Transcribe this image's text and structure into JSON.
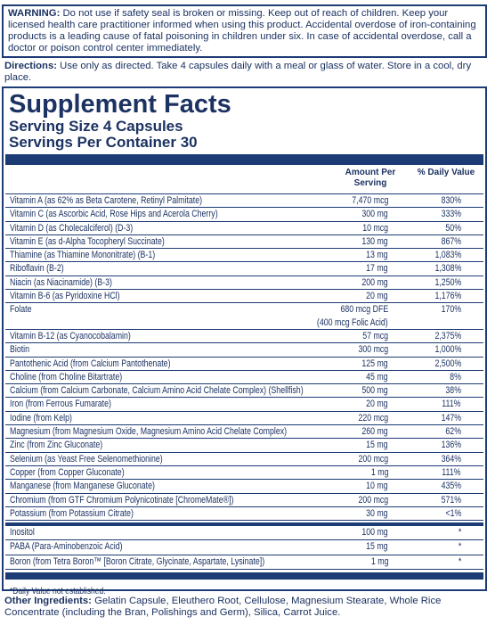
{
  "warning": {
    "label": "WARNING:",
    "text": "Do not use if safety seal is broken or missing. Keep out of reach of children. Keep your licensed health care practitioner informed when using this product. Accidental overdose of iron-containing products is a leading cause of fatal poisoning in children under six. In case of accidental overdose, call a doctor or poison control center immediately."
  },
  "directions": {
    "label": "Directions:",
    "text": "Use only as directed. Take 4 capsules daily with a meal or glass of water. Store in a cool, dry place."
  },
  "facts": {
    "title": "Supplement Facts",
    "serving_size": "Serving Size 4 Capsules",
    "servings_per_container": "Servings Per Container 30",
    "header": {
      "amount": "Amount Per Serving",
      "daily_value": "% Daily Value"
    },
    "rows": [
      {
        "name": "Vitamin A (as 62% as Beta Carotene, Retinyl Palmitate)",
        "amount": "7,470 mcg",
        "dv": "830%"
      },
      {
        "name": "Vitamin C (as Ascorbic Acid, Rose Hips and Acerola Cherry)",
        "amount": "300 mg",
        "dv": "333%"
      },
      {
        "name": "Vitamin D (as Cholecalciferol) (D-3)",
        "amount": "10 mcg",
        "dv": "50%"
      },
      {
        "name": "Vitamin E (as d-Alpha Tocopheryl Succinate)",
        "amount": "130 mg",
        "dv": "867%"
      },
      {
        "name": "Thiamine (as Thiamine Mononitrate) (B-1)",
        "amount": "13 mg",
        "dv": "1,083%"
      },
      {
        "name": "Riboflavin (B-2)",
        "amount": "17 mg",
        "dv": "1,308%"
      },
      {
        "name": "Niacin (as Niacinamide) (B-3)",
        "amount": "200 mg",
        "dv": "1,250%"
      },
      {
        "name": "Vitamin B-6 (as Pyridoxine HCl)",
        "amount": "20 mg",
        "dv": "1,176%"
      },
      {
        "name": "Folate",
        "amount": "680 mcg DFE",
        "amount_detail": "(400 mcg Folic Acid)",
        "dv": "170%"
      },
      {
        "name": "Vitamin B-12 (as Cyanocobalamin)",
        "amount": "57 mcg",
        "dv": "2,375%"
      },
      {
        "name": "Biotin",
        "amount": "300 mcg",
        "dv": "1,000%"
      },
      {
        "name": "Pantothenic Acid (from Calcium Pantothenate)",
        "amount": "125 mg",
        "dv": "2,500%"
      },
      {
        "name": "Choline (from Choline Bitartrate)",
        "amount": "45 mg",
        "dv": "8%"
      },
      {
        "name": "Calcium (from Calcium Carbonate, Calcium Amino Acid Chelate Complex) (Shellfish)",
        "amount": "500 mg",
        "dv": "38%"
      },
      {
        "name": "Iron (from Ferrous Fumarate)",
        "amount": "20 mg",
        "dv": "111%"
      },
      {
        "name": "Iodine (from Kelp)",
        "amount": "220 mcg",
        "dv": "147%"
      },
      {
        "name": "Magnesium (from Magnesium Oxide, Magnesium Amino Acid Chelate Complex)",
        "amount": "260 mg",
        "dv": "62%"
      },
      {
        "name": "Zinc (from Zinc Gluconate)",
        "amount": "15 mg",
        "dv": "136%"
      },
      {
        "name": "Selenium (as Yeast Free Selenomethionine)",
        "amount": "200 mcg",
        "dv": "364%"
      },
      {
        "name": "Copper (from Copper Gluconate)",
        "amount": "1 mg",
        "dv": "111%"
      },
      {
        "name": "Manganese (from Manganese Gluconate)",
        "amount": "10 mg",
        "dv": "435%"
      },
      {
        "name": "Chromium (from GTF Chromium Polynicotinate [ChromeMate®])",
        "amount": "200 mcg",
        "dv": "571%"
      },
      {
        "name": "Potassium (from Potassium Citrate)",
        "amount": "30 mg",
        "dv": "<1%"
      }
    ],
    "other_rows": [
      {
        "name": "Inositol",
        "amount": "100 mg",
        "dv": "*"
      },
      {
        "name": "PABA (Para-Aminobenzoic Acid)",
        "amount": "15 mg",
        "dv": "*"
      },
      {
        "name": "Boron (from Tetra Boron™ [Boron Citrate, Glycinate, Aspartate, Lysinate])",
        "amount": "1 mg",
        "dv": "*"
      }
    ],
    "footnote": "*Daily Value not established."
  },
  "other_ingredients": {
    "label": "Other Ingredients:",
    "text": "Gelatin Capsule, Eleuthero Root, Cellulose, Magnesium Stearate, Whole Rice Concentrate (including the Bran, Polishings and Germ), Silica, Carrot Juice."
  }
}
